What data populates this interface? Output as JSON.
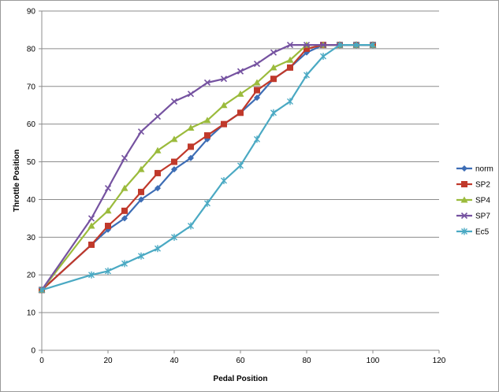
{
  "chart_data": {
    "type": "line",
    "xlabel": "Pedal Position",
    "ylabel": "Throttle Position",
    "xlim": [
      0,
      120
    ],
    "ylim": [
      0,
      90
    ],
    "xticks": [
      0,
      20,
      40,
      60,
      80,
      100,
      120
    ],
    "yticks": [
      0,
      10,
      20,
      30,
      40,
      50,
      60,
      70,
      80,
      90
    ],
    "grid": "horizontal",
    "legend_position": "right",
    "series": [
      {
        "name": "norm",
        "color": "#3d6db5",
        "marker": "diamond",
        "points": [
          [
            0,
            16
          ],
          [
            20,
            32
          ],
          [
            25,
            35
          ],
          [
            30,
            40
          ],
          [
            35,
            43
          ],
          [
            40,
            48
          ],
          [
            45,
            51
          ],
          [
            50,
            56
          ],
          [
            55,
            60
          ],
          [
            60,
            63
          ],
          [
            65,
            67
          ],
          [
            70,
            72
          ],
          [
            75,
            75
          ],
          [
            80,
            79
          ],
          [
            85,
            81
          ],
          [
            90,
            81
          ],
          [
            95,
            81
          ],
          [
            100,
            81
          ]
        ]
      },
      {
        "name": "SP2",
        "color": "#c0392b",
        "marker": "square",
        "points": [
          [
            0,
            16
          ],
          [
            15,
            28
          ],
          [
            20,
            33
          ],
          [
            25,
            37
          ],
          [
            30,
            42
          ],
          [
            35,
            47
          ],
          [
            40,
            50
          ],
          [
            45,
            54
          ],
          [
            50,
            57
          ],
          [
            55,
            60
          ],
          [
            60,
            63
          ],
          [
            65,
            69
          ],
          [
            70,
            72
          ],
          [
            75,
            75
          ],
          [
            80,
            80
          ],
          [
            85,
            81
          ],
          [
            90,
            81
          ],
          [
            95,
            81
          ],
          [
            100,
            81
          ]
        ]
      },
      {
        "name": "SP4",
        "color": "#9bbb3c",
        "marker": "triangle",
        "points": [
          [
            0,
            16
          ],
          [
            15,
            33
          ],
          [
            20,
            37
          ],
          [
            25,
            43
          ],
          [
            30,
            48
          ],
          [
            35,
            53
          ],
          [
            40,
            56
          ],
          [
            45,
            59
          ],
          [
            50,
            61
          ],
          [
            55,
            65
          ],
          [
            60,
            68
          ],
          [
            65,
            71
          ],
          [
            70,
            75
          ],
          [
            75,
            77
          ],
          [
            80,
            81
          ],
          [
            85,
            81
          ],
          [
            90,
            81
          ],
          [
            95,
            81
          ],
          [
            100,
            81
          ]
        ]
      },
      {
        "name": "SP7",
        "color": "#7552a0",
        "marker": "x",
        "points": [
          [
            0,
            16
          ],
          [
            15,
            35
          ],
          [
            20,
            43
          ],
          [
            25,
            51
          ],
          [
            30,
            58
          ],
          [
            35,
            62
          ],
          [
            40,
            66
          ],
          [
            45,
            68
          ],
          [
            50,
            71
          ],
          [
            55,
            72
          ],
          [
            60,
            74
          ],
          [
            65,
            76
          ],
          [
            70,
            79
          ],
          [
            75,
            81
          ],
          [
            80,
            81
          ],
          [
            85,
            81
          ],
          [
            90,
            81
          ],
          [
            95,
            81
          ],
          [
            100,
            81
          ]
        ]
      },
      {
        "name": "Ec5",
        "color": "#4aa9c3",
        "marker": "star",
        "points": [
          [
            0,
            16
          ],
          [
            15,
            20
          ],
          [
            20,
            21
          ],
          [
            25,
            23
          ],
          [
            30,
            25
          ],
          [
            35,
            27
          ],
          [
            40,
            30
          ],
          [
            45,
            33
          ],
          [
            50,
            39
          ],
          [
            55,
            45
          ],
          [
            60,
            49
          ],
          [
            65,
            56
          ],
          [
            70,
            63
          ],
          [
            75,
            66
          ],
          [
            80,
            73
          ],
          [
            85,
            78
          ],
          [
            90,
            81
          ],
          [
            95,
            81
          ],
          [
            100,
            81
          ]
        ]
      }
    ]
  }
}
